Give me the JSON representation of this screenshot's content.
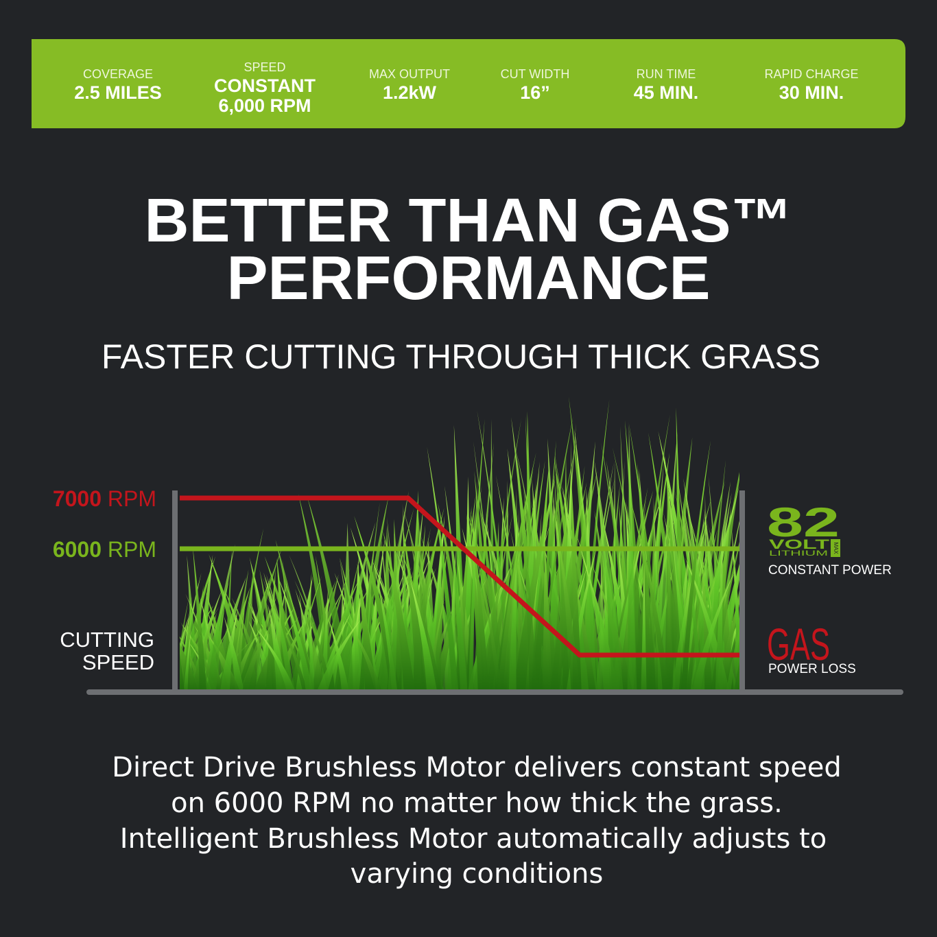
{
  "specs": [
    {
      "label": "COVERAGE",
      "value": [
        "2.5 MILES"
      ]
    },
    {
      "label": "SPEED",
      "value": [
        "CONSTANT",
        "6,000 RPM"
      ]
    },
    {
      "label": "MAX OUTPUT",
      "value": [
        "1.2kW"
      ]
    },
    {
      "label": "CUT WIDTH",
      "value": [
        "16”"
      ]
    },
    {
      "label": "RUN TIME",
      "value": [
        "45 MIN."
      ]
    },
    {
      "label": "RAPID CHARGE",
      "value": [
        "30 MIN."
      ]
    }
  ],
  "headline": [
    "BETTER THAN GAS™",
    "PERFORMANCE"
  ],
  "subheadline": "FASTER CUTTING THROUGH THICK GRASS",
  "diagram": {
    "levels": [
      {
        "number": "7000",
        "unit": "RPM"
      },
      {
        "number": "6000",
        "unit": "RPM"
      }
    ],
    "axis_label": [
      "CUTTING",
      "SPEED"
    ],
    "badge": {
      "number": "82",
      "volt": "VOLT",
      "lithium": "LITHIUM",
      "tag": "MAX"
    },
    "constant_label": "CONSTANT POWER",
    "gas": "GAS",
    "gas_label": "POWER LOSS"
  },
  "description": [
    "Direct Drive Brushless Motor delivers constant speed",
    "on 6000 RPM no matter how thick the grass.",
    "Intelligent Brushless Motor automatically adjusts to",
    "varying conditions"
  ]
}
